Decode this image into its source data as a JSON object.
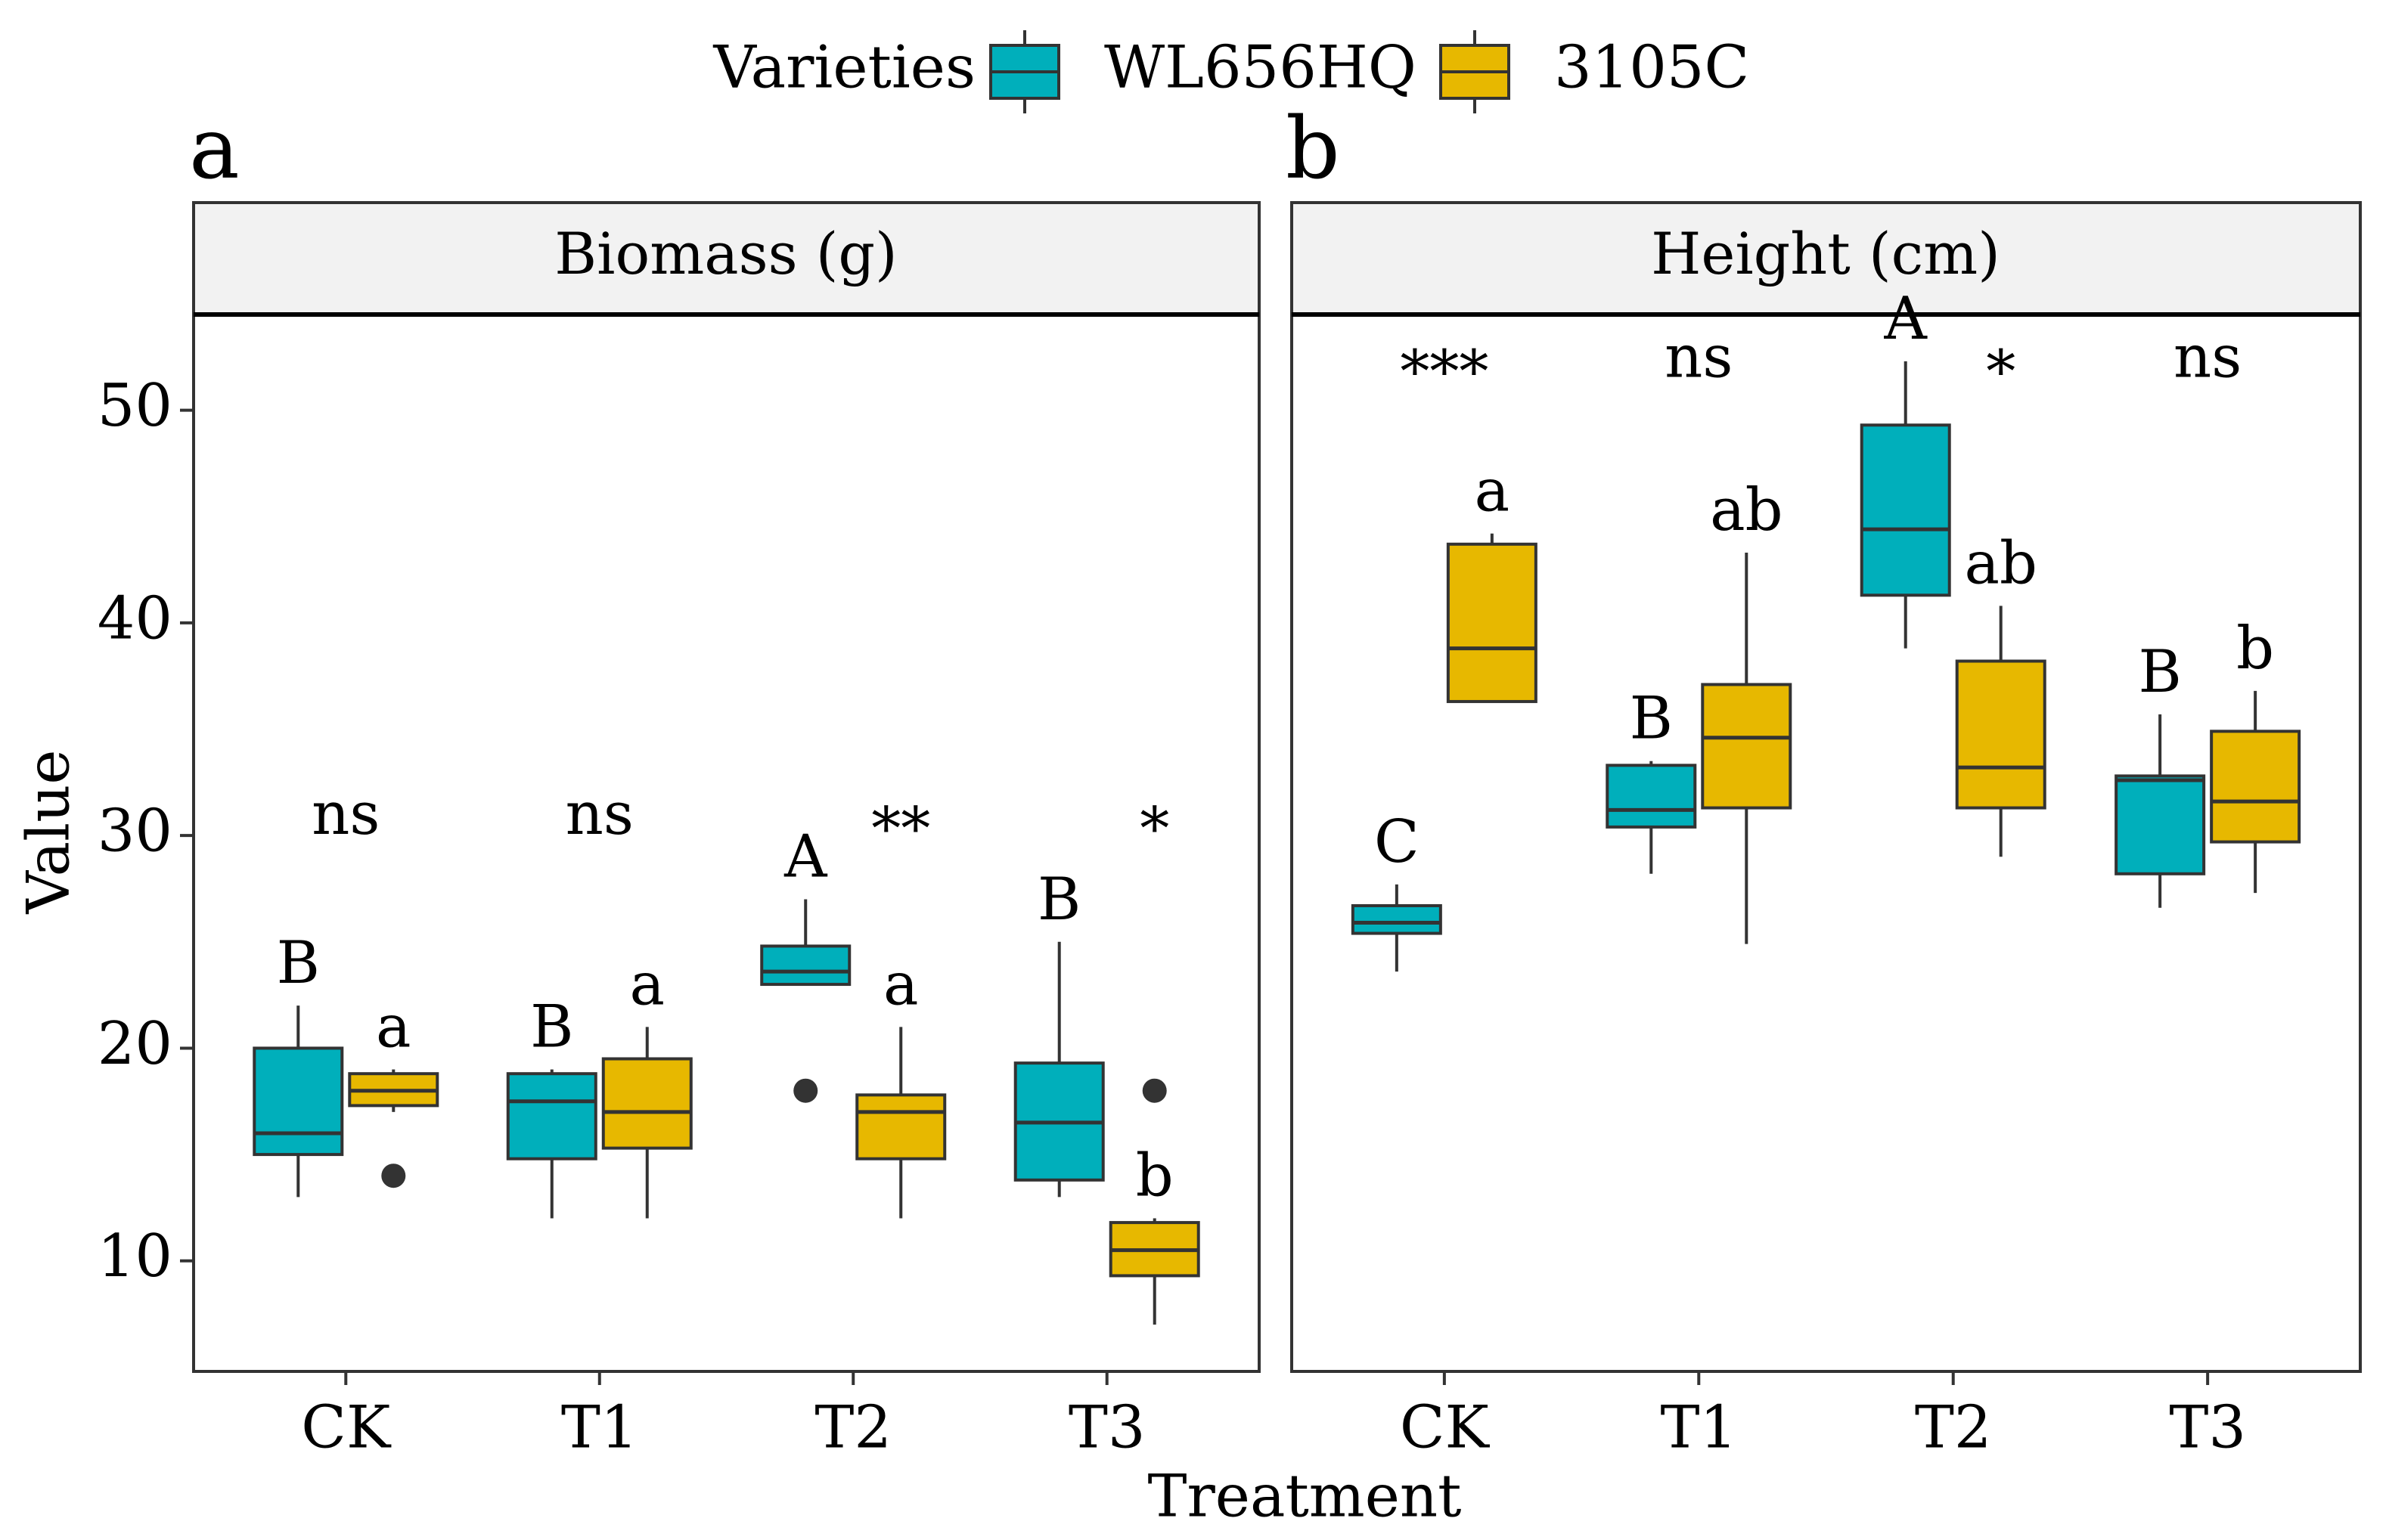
{
  "legend": {
    "title": "Varieties",
    "items": [
      {
        "label": "WL656HQ",
        "color": "#00AFBB"
      },
      {
        "label": "3105C",
        "color": "#E7B800"
      }
    ]
  },
  "axes": {
    "ylabel": "Value",
    "xlabel": "Treatment",
    "yticks": [
      "10",
      "20",
      "30",
      "40",
      "50"
    ]
  },
  "chart_data": [
    {
      "type": "box",
      "panel_letter": "a",
      "title": "Biomass (g)",
      "categories": [
        "CK",
        "T1",
        "T2",
        "T3"
      ],
      "ylim": [
        4.8,
        54.5
      ],
      "ylabel": "Value",
      "xlabel": "Treatment",
      "series": [
        {
          "name": "WL656HQ",
          "color": "#00AFBB",
          "boxes": [
            {
              "min": 13,
              "q1": 15,
              "median": 16,
              "q3": 20,
              "max": 22,
              "outliers": [],
              "label": "B"
            },
            {
              "min": 12,
              "q1": 14.8,
              "median": 17.5,
              "q3": 18.8,
              "max": 19,
              "outliers": [],
              "label": "B"
            },
            {
              "min": 23,
              "q1": 23,
              "median": 23.6,
              "q3": 24.8,
              "max": 27,
              "outliers": [
                18
              ],
              "label": "A"
            },
            {
              "min": 13,
              "q1": 13.8,
              "median": 16.5,
              "q3": 19.3,
              "max": 25,
              "outliers": [],
              "label": "B"
            }
          ]
        },
        {
          "name": "3105C",
          "color": "#E7B800",
          "boxes": [
            {
              "min": 17,
              "q1": 17.3,
              "median": 18,
              "q3": 18.8,
              "max": 19,
              "outliers": [
                14
              ],
              "label": "a"
            },
            {
              "min": 12,
              "q1": 15.3,
              "median": 17,
              "q3": 19.5,
              "max": 21,
              "outliers": [],
              "label": "a"
            },
            {
              "min": 12,
              "q1": 14.8,
              "median": 17,
              "q3": 17.8,
              "max": 21,
              "outliers": [],
              "label": "a"
            },
            {
              "min": 7,
              "q1": 9.3,
              "median": 10.5,
              "q3": 11.8,
              "max": 12,
              "outliers": [
                18
              ],
              "label": "b"
            }
          ]
        }
      ],
      "significance": [
        {
          "category": "CK",
          "label": "ns",
          "y": 30.8
        },
        {
          "category": "T1",
          "label": "ns",
          "y": 30.8
        },
        {
          "category": "T2",
          "label": "**",
          "y": 30.8
        },
        {
          "category": "T3",
          "label": "*",
          "y": 30.8
        }
      ]
    },
    {
      "type": "box",
      "panel_letter": "b",
      "title": "Height (cm)",
      "categories": [
        "CK",
        "T1",
        "T2",
        "T3"
      ],
      "ylim": [
        4.8,
        54.5
      ],
      "ylabel": "Value",
      "xlabel": "Treatment",
      "series": [
        {
          "name": "WL656HQ",
          "color": "#00AFBB",
          "boxes": [
            {
              "min": 23.6,
              "q1": 25.4,
              "median": 25.9,
              "q3": 26.7,
              "max": 27.7,
              "outliers": [],
              "label": "C"
            },
            {
              "min": 28.2,
              "q1": 30.4,
              "median": 31.2,
              "q3": 33.3,
              "max": 33.5,
              "outliers": [],
              "label": "B"
            },
            {
              "min": 38.8,
              "q1": 41.3,
              "median": 44.4,
              "q3": 49.3,
              "max": 52.3,
              "outliers": [],
              "label": "A"
            },
            {
              "min": 26.6,
              "q1": 28.2,
              "median": 32.6,
              "q3": 32.8,
              "max": 35.7,
              "outliers": [],
              "label": "B"
            }
          ]
        },
        {
          "name": "3105C",
          "color": "#E7B800",
          "boxes": [
            {
              "min": 36.3,
              "q1": 36.3,
              "median": 38.8,
              "q3": 43.7,
              "max": 44.2,
              "outliers": [],
              "label": "a"
            },
            {
              "min": 24.9,
              "q1": 31.3,
              "median": 34.6,
              "q3": 37.1,
              "max": 43.3,
              "outliers": [],
              "label": "ab"
            },
            {
              "min": 29.0,
              "q1": 31.3,
              "median": 33.2,
              "q3": 38.2,
              "max": 40.8,
              "outliers": [],
              "label": "ab"
            },
            {
              "min": 27.3,
              "q1": 29.7,
              "median": 31.6,
              "q3": 34.9,
              "max": 36.8,
              "outliers": [],
              "label": "b"
            }
          ]
        }
      ],
      "significance": [
        {
          "category": "CK",
          "label": "***",
          "y": 52.3
        },
        {
          "category": "T1",
          "label": "ns",
          "y": 52.3
        },
        {
          "category": "T2",
          "label": "*",
          "y": 52.3
        },
        {
          "category": "T3",
          "label": "ns",
          "y": 52.3
        }
      ]
    }
  ]
}
